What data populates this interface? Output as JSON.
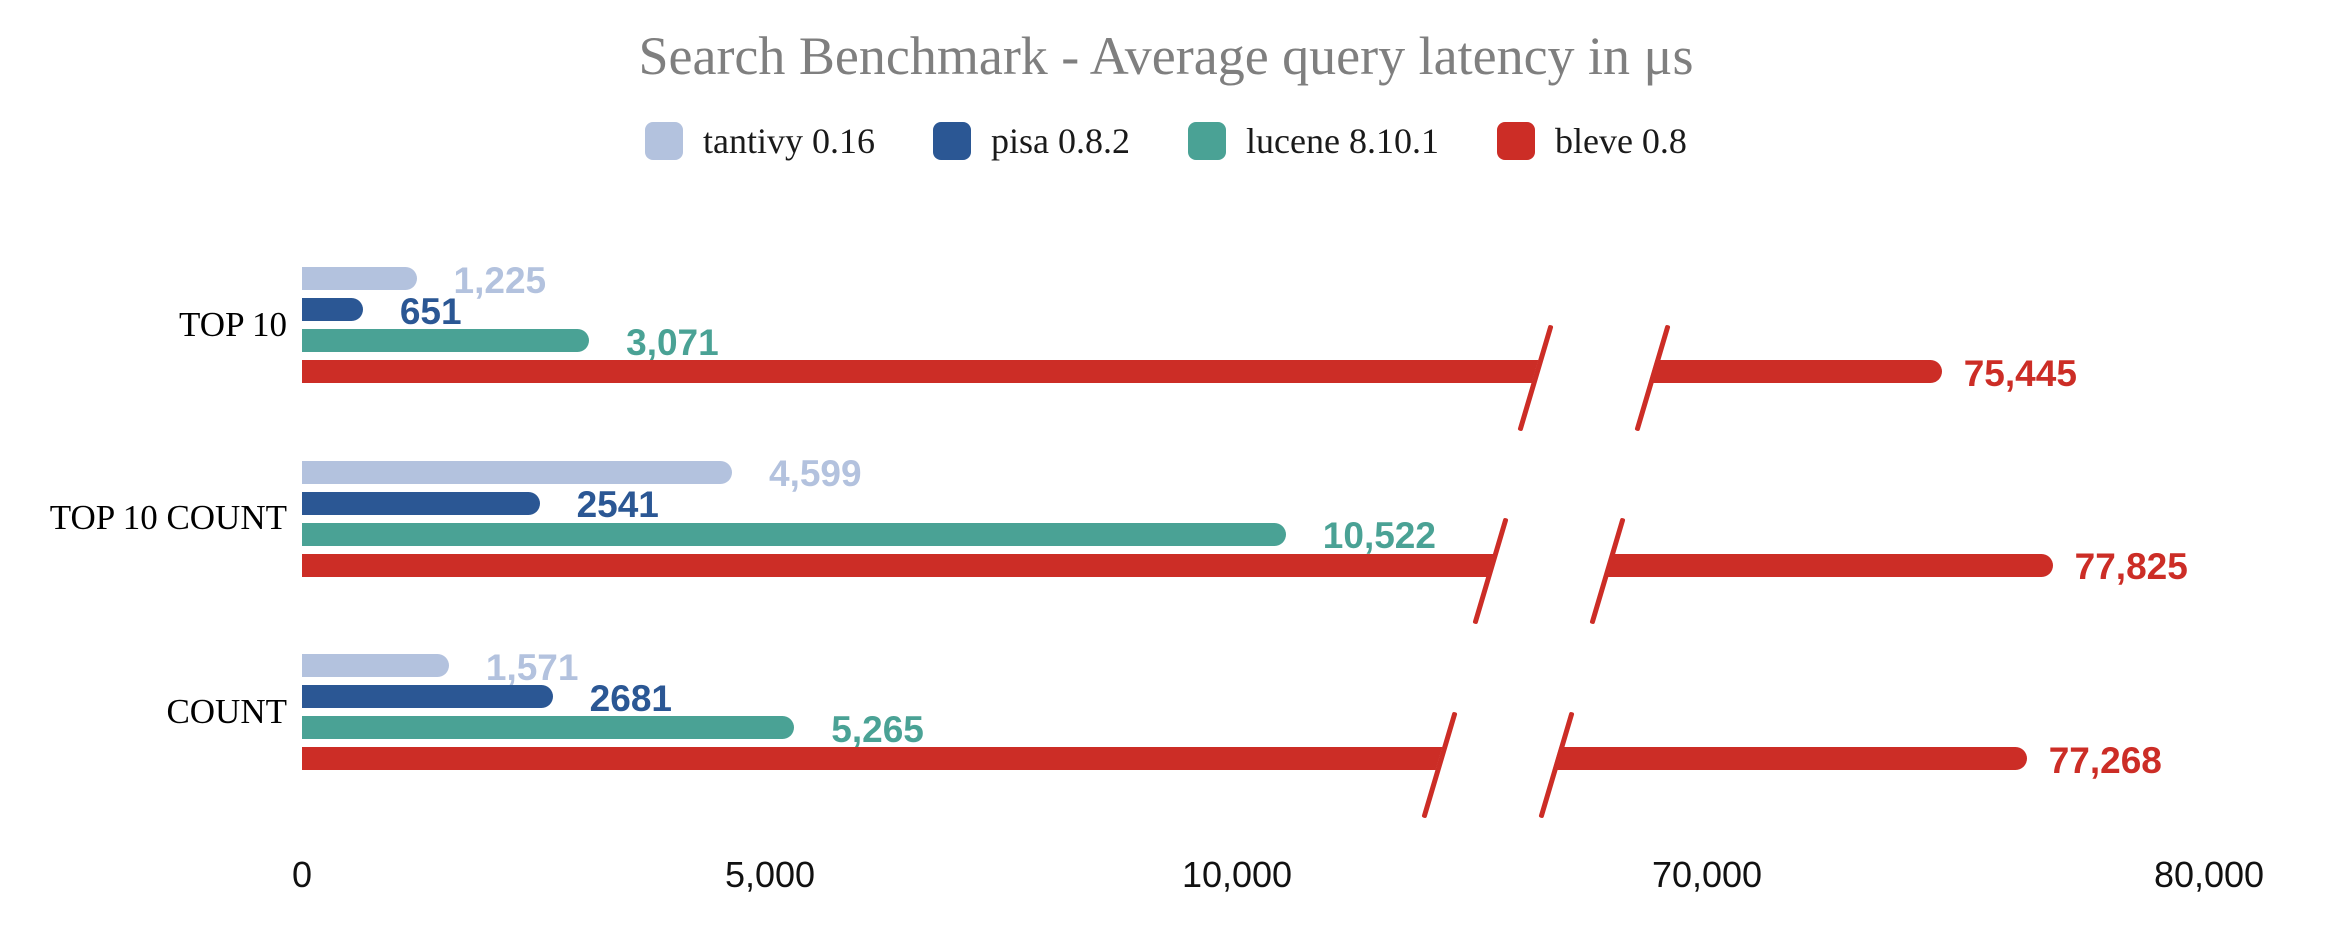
{
  "title": "Search Benchmark - Average query latency in μs",
  "colors": {
    "tantivy": "#b3c2de",
    "pisa": "#2b5794",
    "lucene": "#4aa295",
    "bleve": "#cc2d26",
    "title_text": "#7f7f7f",
    "axis_text": "#111111"
  },
  "legend": {
    "items": [
      {
        "id": "tantivy",
        "label": "tantivy 0.16"
      },
      {
        "id": "pisa",
        "label": "pisa 0.8.2"
      },
      {
        "id": "lucene",
        "label": "lucene 8.10.1"
      },
      {
        "id": "bleve",
        "label": "bleve 0.8"
      }
    ]
  },
  "chart_data": {
    "type": "bar",
    "orientation": "horizontal",
    "title": "Search Benchmark - Average query latency in μs",
    "unit": "μs",
    "categories": [
      "TOP 10",
      "TOP 10 COUNT",
      "COUNT"
    ],
    "series": [
      {
        "name": "tantivy 0.16",
        "color_id": "tantivy",
        "values": [
          1225,
          4599,
          1571
        ],
        "value_labels": [
          "1,225",
          "4,599",
          "1,571"
        ]
      },
      {
        "name": "pisa 0.8.2",
        "color_id": "pisa",
        "values": [
          651,
          2541,
          2681
        ],
        "value_labels": [
          "651",
          "2541",
          "2681"
        ]
      },
      {
        "name": "lucene 8.10.1",
        "color_id": "lucene",
        "values": [
          3071,
          10522,
          5265
        ],
        "value_labels": [
          "3,071",
          "10,522",
          "5,265"
        ]
      },
      {
        "name": "bleve 0.8",
        "color_id": "bleve",
        "values": [
          75445,
          77825,
          77268
        ],
        "value_labels": [
          "75,445",
          "77,825",
          "77,268"
        ],
        "axis_break": true
      }
    ],
    "x_axis": {
      "ticks": [
        {
          "value": 0,
          "label": "0"
        },
        {
          "value": 5000,
          "label": "5,000"
        },
        {
          "value": 10000,
          "label": "10,000"
        },
        {
          "value": 70000,
          "label": "70,000"
        },
        {
          "value": 80000,
          "label": "80,000"
        }
      ],
      "break_between": [
        12700,
        68000
      ],
      "gridlines": false
    },
    "legend_position": "top"
  }
}
